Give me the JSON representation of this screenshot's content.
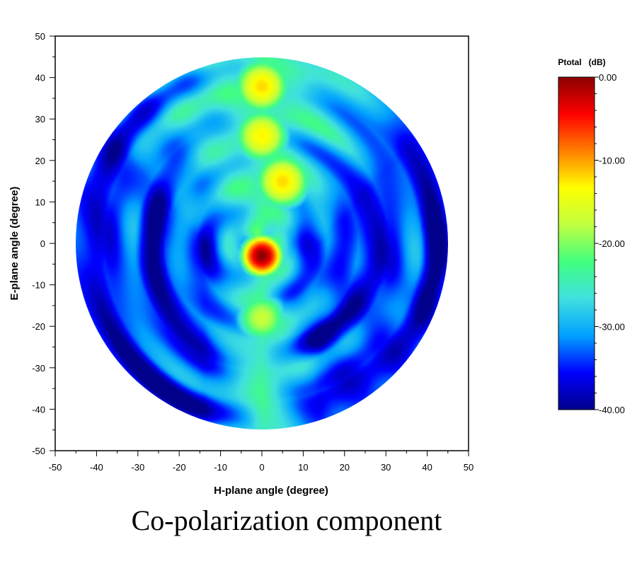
{
  "chart_data": {
    "type": "heatmap",
    "xlabel": "H-plane angle (degree)",
    "ylabel": "E-plane angle (degree)",
    "xlim": [
      -50,
      50
    ],
    "ylim": [
      -50,
      50
    ],
    "x_ticks": [
      "-50",
      "-40",
      "-30",
      "-20",
      "-10",
      "0",
      "10",
      "20",
      "30",
      "40",
      "50"
    ],
    "y_ticks": [
      "50",
      "40",
      "30",
      "20",
      "10",
      "0",
      "-10",
      "-20",
      "-30",
      "-40",
      "-50"
    ],
    "scan_region": "circle",
    "scan_radius_deg": 45,
    "colorbar": {
      "title": "Ptotal   (dB)",
      "range": [
        -40,
        0
      ],
      "tick_labels": [
        "0.00",
        "-10.00",
        "-20.00",
        "-30.00",
        "-40.00"
      ],
      "colormap": [
        "#00008b",
        "#0000ff",
        "#00a0ff",
        "#40e0e0",
        "#40ff80",
        "#c0ff40",
        "#ffff00",
        "#ff8000",
        "#ff0000",
        "#8b0000"
      ]
    },
    "peak": {
      "h_deg": 0,
      "e_deg": -3,
      "value_db": 0
    },
    "hot_spots": [
      {
        "h_deg": 0,
        "e_deg": 38,
        "value_db": -12
      },
      {
        "h_deg": 0,
        "e_deg": 26,
        "value_db": -13
      },
      {
        "h_deg": 5,
        "e_deg": 15,
        "value_db": -12
      },
      {
        "h_deg": 0,
        "e_deg": -18,
        "value_db": -17
      }
    ],
    "background_db": -24
  },
  "caption": "Co-polarization component"
}
